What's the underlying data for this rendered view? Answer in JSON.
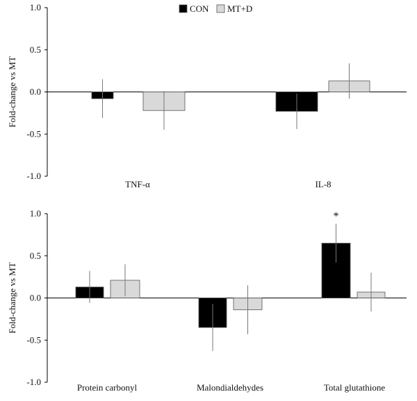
{
  "legend": {
    "items": [
      {
        "label": "CON",
        "color": "#000000"
      },
      {
        "label": "MT+D",
        "color": "#d9d9d9"
      }
    ],
    "placement": "top-center"
  },
  "chart_data": [
    {
      "type": "bar",
      "ylabel": "Fold-change vs MT",
      "ylim": [
        -1.0,
        1.0
      ],
      "yticks": [
        "1.0",
        "0.5",
        "0.0",
        "-0.5",
        "-1.0"
      ],
      "categories": [
        "TNF-α",
        "IL-8"
      ],
      "series": [
        {
          "name": "CON",
          "color": "#000000",
          "values": [
            -0.08,
            -0.23
          ],
          "errors": [
            0.23,
            0.21
          ]
        },
        {
          "name": "MT+D",
          "color": "#d9d9d9",
          "values": [
            -0.22,
            0.13
          ],
          "errors": [
            0.23,
            0.21
          ]
        }
      ],
      "annotations": []
    },
    {
      "type": "bar",
      "ylabel": "Fold-change vs MT",
      "ylim": [
        -1.0,
        1.0
      ],
      "yticks": [
        "1.0",
        "0.5",
        "0.0",
        "-0.5",
        "-1.0"
      ],
      "categories": [
        "Protein carbonyl",
        "Malondialdehydes",
        "Total glutathione"
      ],
      "series": [
        {
          "name": "CON",
          "color": "#000000",
          "values": [
            0.13,
            -0.35,
            0.65
          ],
          "errors": [
            0.19,
            0.28,
            0.23
          ]
        },
        {
          "name": "MT+D",
          "color": "#d9d9d9",
          "values": [
            0.21,
            -0.14,
            0.07
          ],
          "errors": [
            0.19,
            0.29,
            0.23
          ]
        }
      ],
      "annotations": [
        {
          "category": "Total glutathione",
          "series": "CON",
          "text": "*"
        }
      ]
    }
  ]
}
